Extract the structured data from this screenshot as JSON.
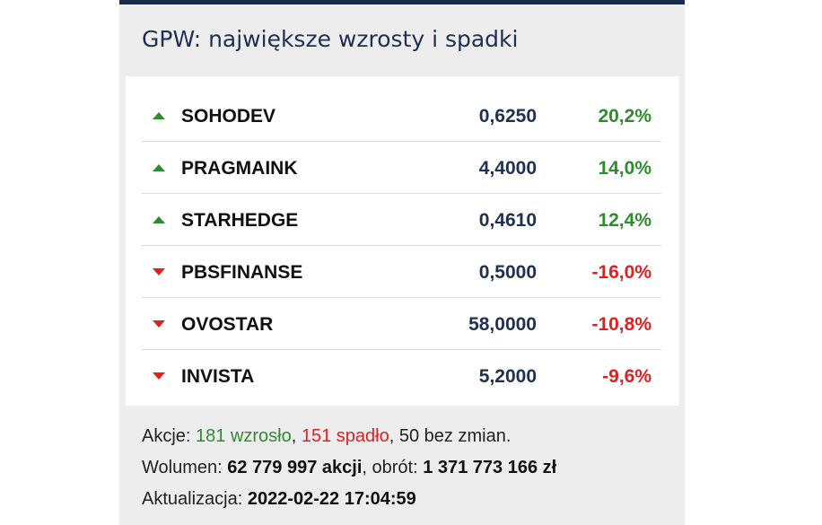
{
  "header": {
    "title": "GPW: największe wzrosty i spadki"
  },
  "table": {
    "rows": [
      [
        "SOHODEV",
        "0,6250",
        "20,2%"
      ],
      [
        "PRAGMAINK",
        "4,4000",
        "14,0%"
      ],
      [
        "STARHEDGE",
        "0,4610",
        "12,4%"
      ],
      [
        "PBSFINANSE",
        "0,5000",
        "-16,0%"
      ],
      [
        "OVOSTAR",
        "58,0000",
        "-10,8%"
      ],
      [
        "INVISTA",
        "5,2000",
        "-9,6%"
      ]
    ]
  },
  "footer": {
    "stats": [
      "Akcje: ",
      "181 wzrosło",
      ", ",
      "151 spadło",
      ", 50 bez zmian."
    ],
    "volume": [
      "Wolumen: ",
      "62 779 997 akcji",
      ", obrót: ",
      "1 371 773 166 zł"
    ],
    "updated": [
      "Aktualizacja: ",
      "2022-02-22 17:04:59"
    ]
  }
}
